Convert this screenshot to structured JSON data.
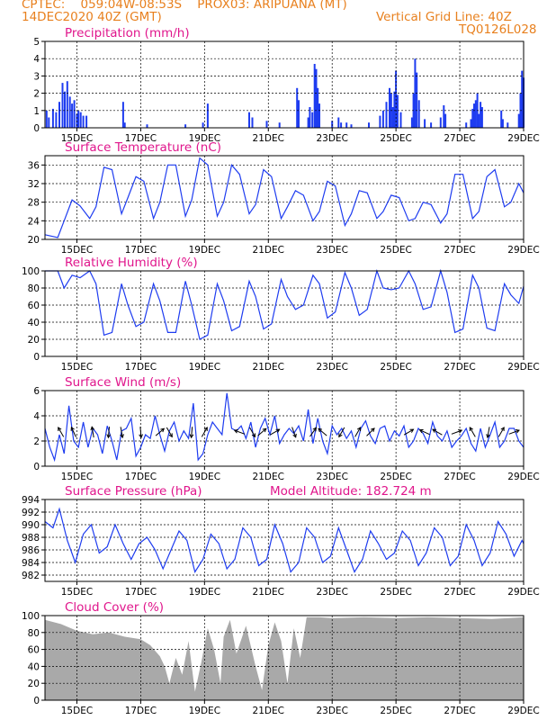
{
  "header": {
    "line1": "CPTEC:    059:04W-08:53S    PROX03: ARIPUANA (MT)",
    "line2": "14DEC2020 40Z (GMT)",
    "grid_note": "Vertical Grid Line: 40Z",
    "code": "TQ0126L028"
  },
  "colors": {
    "header": "#e8801e",
    "title": "#e0168c",
    "line": "#1e3cf0",
    "cloud": "#a9a9a9",
    "grid": "#000000"
  },
  "chart_data": [
    {
      "type": "bar",
      "title": "Precipitation (mm/h)",
      "xlabel": "",
      "ylabel": "",
      "ylim": [
        0,
        5
      ],
      "yticks": [
        0,
        1,
        2,
        3,
        4,
        5
      ],
      "xticks": [
        "15DEC",
        "17DEC",
        "19DEC",
        "21DEC",
        "23DEC",
        "25DEC",
        "27DEC",
        "29DEC"
      ],
      "x_unit": "days since 14DEC 00Z",
      "x_range": [
        0,
        15
      ],
      "points": [
        [
          0.05,
          1.0
        ],
        [
          0.12,
          0.6
        ],
        [
          0.25,
          1.1
        ],
        [
          0.35,
          0.9
        ],
        [
          0.45,
          1.5
        ],
        [
          0.55,
          2.6
        ],
        [
          0.62,
          2.1
        ],
        [
          0.7,
          2.7
        ],
        [
          0.78,
          1.8
        ],
        [
          0.85,
          1.4
        ],
        [
          0.92,
          1.6
        ],
        [
          1.0,
          0.8
        ],
        [
          1.05,
          1.0
        ],
        [
          1.12,
          0.9
        ],
        [
          1.2,
          0.7
        ],
        [
          1.3,
          0.7
        ],
        [
          2.45,
          1.5
        ],
        [
          2.5,
          0.3
        ],
        [
          3.2,
          0.2
        ],
        [
          4.4,
          0.2
        ],
        [
          4.95,
          0.3
        ],
        [
          5.1,
          1.4
        ],
        [
          6.4,
          0.9
        ],
        [
          6.5,
          0.6
        ],
        [
          6.95,
          0.4
        ],
        [
          7.35,
          0.3
        ],
        [
          7.9,
          2.3
        ],
        [
          7.95,
          1.6
        ],
        [
          8.25,
          0.6
        ],
        [
          8.3,
          1.2
        ],
        [
          8.38,
          0.9
        ],
        [
          8.45,
          3.7
        ],
        [
          8.5,
          3.4
        ],
        [
          8.55,
          2.3
        ],
        [
          8.6,
          1.4
        ],
        [
          9.0,
          0.4
        ],
        [
          9.2,
          0.6
        ],
        [
          9.28,
          0.3
        ],
        [
          9.45,
          0.3
        ],
        [
          9.6,
          0.2
        ],
        [
          10.15,
          0.3
        ],
        [
          10.5,
          0.7
        ],
        [
          10.6,
          1.0
        ],
        [
          10.7,
          1.5
        ],
        [
          10.8,
          2.3
        ],
        [
          10.85,
          2.0
        ],
        [
          10.9,
          1.2
        ],
        [
          10.95,
          2.1
        ],
        [
          11.0,
          3.3
        ],
        [
          11.05,
          1.9
        ],
        [
          11.15,
          0.9
        ],
        [
          11.5,
          0.6
        ],
        [
          11.55,
          2.0
        ],
        [
          11.6,
          4.0
        ],
        [
          11.65,
          3.2
        ],
        [
          11.72,
          1.6
        ],
        [
          11.9,
          0.5
        ],
        [
          12.1,
          0.3
        ],
        [
          12.4,
          0.6
        ],
        [
          12.5,
          1.3
        ],
        [
          12.55,
          0.8
        ],
        [
          13.2,
          0.3
        ],
        [
          13.35,
          0.5
        ],
        [
          13.4,
          1.1
        ],
        [
          13.45,
          1.4
        ],
        [
          13.5,
          1.6
        ],
        [
          13.55,
          2.0
        ],
        [
          13.6,
          0.8
        ],
        [
          13.65,
          1.5
        ],
        [
          13.7,
          1.2
        ],
        [
          14.3,
          1.0
        ],
        [
          14.35,
          0.5
        ],
        [
          14.5,
          0.3
        ],
        [
          14.85,
          0.8
        ],
        [
          14.9,
          2.0
        ],
        [
          14.95,
          3.3
        ],
        [
          15.0,
          2.9
        ]
      ]
    },
    {
      "type": "line",
      "title": "Surface Temperature (nC)",
      "xlabel": "",
      "ylabel": "",
      "ylim": [
        20,
        38
      ],
      "yticks": [
        20,
        24,
        28,
        32,
        36
      ],
      "xticks": [
        "15DEC",
        "17DEC",
        "19DEC",
        "21DEC",
        "23DEC",
        "25DEC",
        "27DEC",
        "29DEC"
      ],
      "x": [
        0,
        0.4,
        0.6,
        0.85,
        1.1,
        1.4,
        1.6,
        1.85,
        2.1,
        2.4,
        2.6,
        2.85,
        3.1,
        3.4,
        3.6,
        3.85,
        4.1,
        4.4,
        4.6,
        4.85,
        5.1,
        5.4,
        5.6,
        5.85,
        6.1,
        6.4,
        6.6,
        6.85,
        7.1,
        7.4,
        7.6,
        7.85,
        8.1,
        8.4,
        8.6,
        8.85,
        9.1,
        9.4,
        9.6,
        9.85,
        10.1,
        10.4,
        10.6,
        10.85,
        11.1,
        11.4,
        11.6,
        11.85,
        12.1,
        12.4,
        12.6,
        12.85,
        13.1,
        13.4,
        13.6,
        13.85,
        14.1,
        14.4,
        14.6,
        14.85,
        15.0
      ],
      "y": [
        21,
        20.4,
        24,
        28.5,
        27.2,
        24.5,
        27,
        35.5,
        35,
        25.5,
        29,
        33.5,
        32.5,
        24.5,
        28,
        36,
        36,
        25,
        28.5,
        37.5,
        36,
        25,
        28,
        36,
        34,
        25.5,
        27.5,
        35,
        33.5,
        24.5,
        27,
        30.5,
        29.5,
        24,
        26,
        32.5,
        31.5,
        23,
        25.5,
        30.5,
        30,
        24.5,
        26,
        29.5,
        29,
        24,
        24.5,
        28,
        27.5,
        23.5,
        25.5,
        34,
        34,
        24.5,
        26,
        33.5,
        35,
        27,
        28,
        32,
        30
      ]
    },
    {
      "type": "line",
      "title": "Relative Humidity (%)",
      "xlabel": "",
      "ylabel": "",
      "ylim": [
        0,
        100
      ],
      "yticks": [
        0,
        20,
        40,
        60,
        80,
        100
      ],
      "xticks": [
        "15DEC",
        "17DEC",
        "19DEC",
        "21DEC",
        "23DEC",
        "25DEC",
        "27DEC",
        "29DEC"
      ],
      "x": [
        0,
        0.4,
        0.6,
        0.85,
        1.1,
        1.4,
        1.6,
        1.85,
        2.1,
        2.4,
        2.6,
        2.85,
        3.1,
        3.4,
        3.6,
        3.85,
        4.1,
        4.4,
        4.6,
        4.85,
        5.1,
        5.4,
        5.6,
        5.85,
        6.1,
        6.4,
        6.6,
        6.85,
        7.1,
        7.4,
        7.6,
        7.85,
        8.1,
        8.4,
        8.6,
        8.85,
        9.1,
        9.4,
        9.6,
        9.85,
        10.1,
        10.4,
        10.6,
        10.85,
        11.1,
        11.4,
        11.6,
        11.85,
        12.1,
        12.4,
        12.6,
        12.85,
        13.1,
        13.4,
        13.6,
        13.85,
        14.1,
        14.4,
        14.6,
        14.85,
        15.0
      ],
      "y": [
        100,
        100,
        80,
        95,
        92,
        100,
        85,
        25,
        28,
        85,
        60,
        35,
        40,
        85,
        65,
        28,
        28,
        88,
        60,
        20,
        25,
        85,
        65,
        30,
        35,
        88,
        70,
        32,
        38,
        90,
        70,
        55,
        60,
        95,
        85,
        45,
        52,
        98,
        80,
        48,
        55,
        100,
        80,
        78,
        80,
        100,
        85,
        55,
        58,
        100,
        75,
        28,
        32,
        95,
        80,
        33,
        30,
        85,
        72,
        62,
        82
      ]
    },
    {
      "type": "line",
      "title": "Surface Wind (m/s)",
      "xlabel": "",
      "ylabel": "",
      "ylim": [
        0,
        6
      ],
      "yticks": [
        0,
        2,
        4,
        6
      ],
      "xticks": [
        "15DEC",
        "17DEC",
        "19DEC",
        "21DEC",
        "23DEC",
        "25DEC",
        "27DEC",
        "29DEC"
      ],
      "x": [
        0,
        0.15,
        0.3,
        0.45,
        0.6,
        0.75,
        0.9,
        1.05,
        1.2,
        1.35,
        1.5,
        1.65,
        1.8,
        1.95,
        2.1,
        2.25,
        2.4,
        2.55,
        2.7,
        2.85,
        3.0,
        3.15,
        3.3,
        3.45,
        3.6,
        3.75,
        3.9,
        4.05,
        4.2,
        4.35,
        4.5,
        4.65,
        4.8,
        4.95,
        5.1,
        5.25,
        5.4,
        5.55,
        5.7,
        5.85,
        6.0,
        6.15,
        6.3,
        6.45,
        6.6,
        6.75,
        6.9,
        7.05,
        7.2,
        7.35,
        7.5,
        7.65,
        7.8,
        7.95,
        8.1,
        8.25,
        8.4,
        8.55,
        8.7,
        8.85,
        9.0,
        9.15,
        9.3,
        9.45,
        9.6,
        9.75,
        9.9,
        10.05,
        10.2,
        10.35,
        10.5,
        10.65,
        10.8,
        10.95,
        11.1,
        11.25,
        11.4,
        11.55,
        11.7,
        11.85,
        12.0,
        12.15,
        12.3,
        12.45,
        12.6,
        12.75,
        12.9,
        13.05,
        13.2,
        13.35,
        13.5,
        13.65,
        13.8,
        13.95,
        14.1,
        14.25,
        14.4,
        14.55,
        14.7,
        14.85,
        15.0
      ],
      "y": [
        3.0,
        1.5,
        0.5,
        2.5,
        1.0,
        4.8,
        2.0,
        1.5,
        3.5,
        1.5,
        3.0,
        2.5,
        1.0,
        3.2,
        2.0,
        0.5,
        2.8,
        3.0,
        3.8,
        0.8,
        1.5,
        2.5,
        2.2,
        4.0,
        2.5,
        1.2,
        2.8,
        3.5,
        2.0,
        2.8,
        2.2,
        5.0,
        0.5,
        1.0,
        2.5,
        3.5,
        3.0,
        2.5,
        5.8,
        3.0,
        2.8,
        3.2,
        2.2,
        3.5,
        1.5,
        3.0,
        3.8,
        2.5,
        4.0,
        1.8,
        2.5,
        3.0,
        2.6,
        3.2,
        2.0,
        4.5,
        1.8,
        3.8,
        2.0,
        1.0,
        3.2,
        2.5,
        3.0,
        2.2,
        2.8,
        1.5,
        3.0,
        3.6,
        2.4,
        1.8,
        3.0,
        3.2,
        2.0,
        2.8,
        2.4,
        3.2,
        1.5,
        2.0,
        3.0,
        2.6,
        1.8,
        3.5,
        2.4,
        2.0,
        2.8,
        1.5,
        2.0,
        2.4,
        3.0,
        1.8,
        1.2,
        3.0,
        1.5,
        2.5,
        3.5,
        1.5,
        2.0,
        3.0,
        3.0,
        2.0,
        1.5
      ],
      "wind_arrows": [
        {
          "x": 0.5,
          "angle": -120
        },
        {
          "x": 0.9,
          "angle": -115
        },
        {
          "x": 1.5,
          "angle": -100
        },
        {
          "x": 2.0,
          "angle": 95
        },
        {
          "x": 2.4,
          "angle": 80
        },
        {
          "x": 3.0,
          "angle": 85
        },
        {
          "x": 3.6,
          "angle": -40
        },
        {
          "x": 3.9,
          "angle": 60
        },
        {
          "x": 4.6,
          "angle": 95
        },
        {
          "x": 5.0,
          "angle": -60
        },
        {
          "x": 6.1,
          "angle": -160
        },
        {
          "x": 6.5,
          "angle": 60
        },
        {
          "x": 6.8,
          "angle": -40
        },
        {
          "x": 7.2,
          "angle": -30
        },
        {
          "x": 7.8,
          "angle": 70
        },
        {
          "x": 8.4,
          "angle": -55
        },
        {
          "x": 8.7,
          "angle": -140
        },
        {
          "x": 9.3,
          "angle": 120
        },
        {
          "x": 9.8,
          "angle": -60
        },
        {
          "x": 10.2,
          "angle": -45
        },
        {
          "x": 11.4,
          "angle": -30
        },
        {
          "x": 11.9,
          "angle": -155
        },
        {
          "x": 12.3,
          "angle": -150
        },
        {
          "x": 12.9,
          "angle": -20
        },
        {
          "x": 13.4,
          "angle": -120
        },
        {
          "x": 13.9,
          "angle": 100
        },
        {
          "x": 14.3,
          "angle": -60
        },
        {
          "x": 14.7,
          "angle": -20
        }
      ]
    },
    {
      "type": "line",
      "title": "Surface Pressure (hPa)",
      "subtitle": "Model Altitude: 182.724 m",
      "xlabel": "",
      "ylabel": "",
      "ylim": [
        981,
        994
      ],
      "yticks": [
        982,
        984,
        986,
        988,
        990,
        992,
        994
      ],
      "xticks": [
        "15DEC",
        "17DEC",
        "19DEC",
        "21DEC",
        "23DEC",
        "25DEC",
        "27DEC",
        "29DEC"
      ],
      "x": [
        0,
        0.25,
        0.45,
        0.7,
        0.95,
        1.2,
        1.45,
        1.7,
        1.95,
        2.2,
        2.45,
        2.7,
        2.95,
        3.2,
        3.45,
        3.7,
        3.95,
        4.2,
        4.45,
        4.7,
        4.95,
        5.2,
        5.45,
        5.7,
        5.95,
        6.2,
        6.45,
        6.7,
        6.95,
        7.2,
        7.45,
        7.7,
        7.95,
        8.2,
        8.45,
        8.7,
        8.95,
        9.2,
        9.45,
        9.7,
        9.95,
        10.2,
        10.45,
        10.7,
        10.95,
        11.2,
        11.45,
        11.7,
        11.95,
        12.2,
        12.45,
        12.7,
        12.95,
        13.2,
        13.45,
        13.7,
        13.95,
        14.2,
        14.45,
        14.7,
        14.95,
        15.0
      ],
      "y": [
        990.5,
        989.5,
        992.5,
        987.5,
        984.0,
        988.5,
        990.0,
        985.5,
        986.5,
        990.0,
        987.0,
        984.5,
        987.0,
        988.0,
        986.0,
        983.0,
        986.0,
        989.0,
        987.5,
        982.5,
        984.5,
        988.5,
        987.0,
        983.0,
        984.5,
        989.5,
        988.0,
        983.5,
        984.5,
        990.0,
        987.0,
        982.5,
        984.0,
        989.5,
        988.0,
        984.0,
        985.0,
        989.5,
        986.0,
        982.5,
        984.5,
        989.0,
        987.0,
        984.5,
        985.5,
        989.0,
        987.5,
        983.5,
        985.5,
        989.5,
        988.0,
        983.5,
        985.0,
        990.0,
        987.5,
        983.5,
        985.5,
        990.5,
        988.5,
        985.0,
        987.5,
        987.0
      ]
    },
    {
      "type": "area",
      "title": "Cloud Cover (%)",
      "xlabel": "",
      "ylabel": "",
      "ylim": [
        0,
        100
      ],
      "yticks": [
        0,
        20,
        40,
        60,
        80,
        100
      ],
      "xticks": [
        "15DEC",
        "17DEC",
        "19DEC",
        "21DEC",
        "23DEC",
        "25DEC",
        "27DEC",
        "29DEC"
      ],
      "x": [
        0,
        0.5,
        1.0,
        1.5,
        2.0,
        2.5,
        3.0,
        3.3,
        3.6,
        3.75,
        3.9,
        4.1,
        4.3,
        4.5,
        4.7,
        4.9,
        5.1,
        5.3,
        5.5,
        5.6,
        5.8,
        6.0,
        6.3,
        6.6,
        6.8,
        7.0,
        7.2,
        7.4,
        7.6,
        7.8,
        8.0,
        8.2,
        8.6,
        9.0,
        10.0,
        11.0,
        12.0,
        13.0,
        14.0,
        15.0
      ],
      "y": [
        95,
        90,
        82,
        78,
        80,
        75,
        72,
        65,
        52,
        40,
        20,
        50,
        30,
        70,
        10,
        45,
        85,
        60,
        20,
        75,
        95,
        55,
        88,
        40,
        12,
        65,
        92,
        70,
        20,
        85,
        50,
        98,
        98,
        97,
        98,
        97,
        98,
        97,
        96,
        98
      ]
    }
  ]
}
